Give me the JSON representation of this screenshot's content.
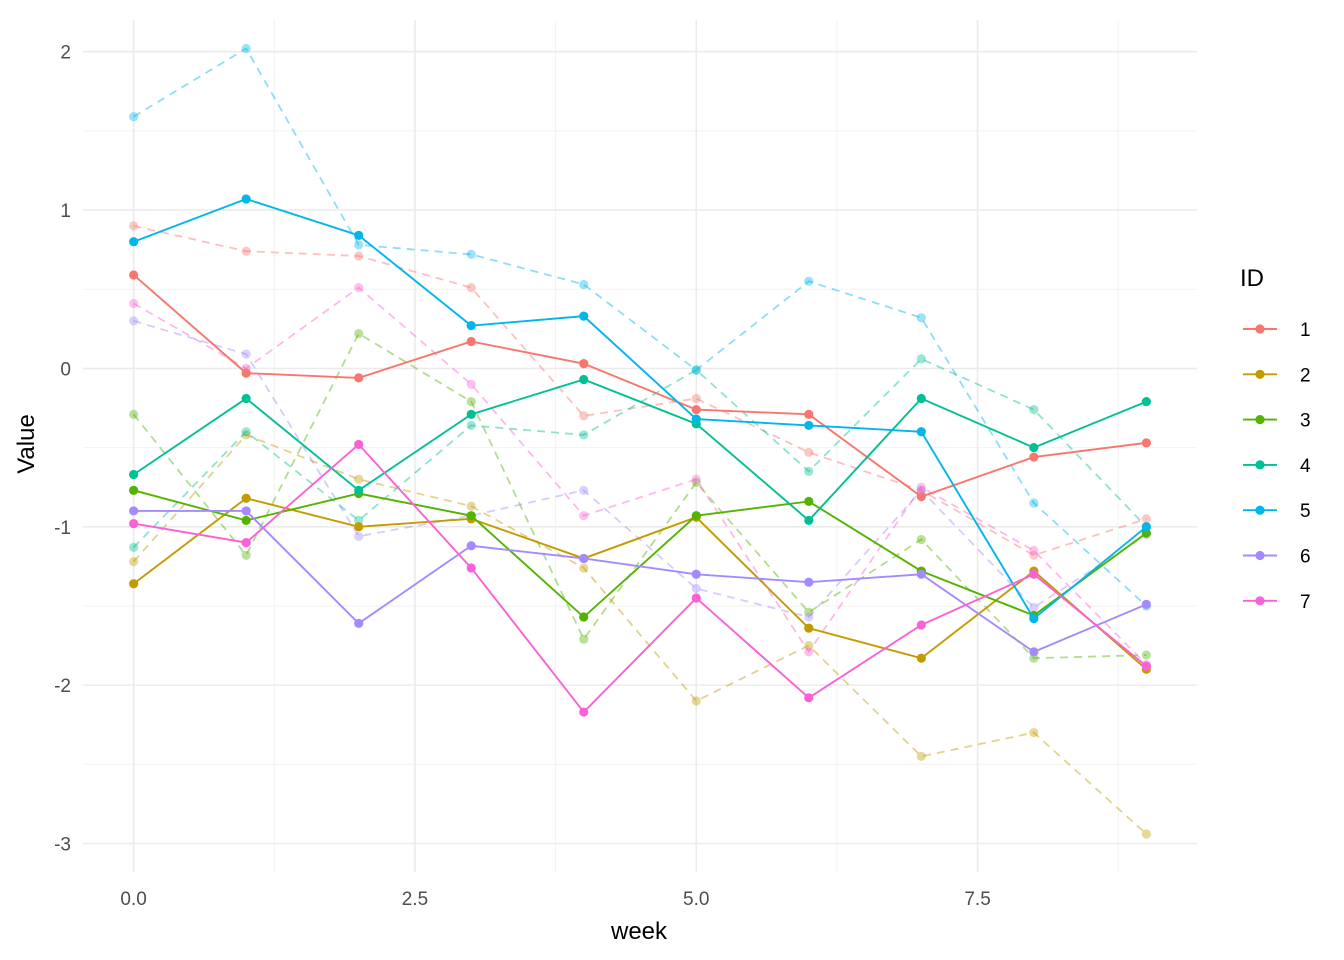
{
  "chart_data": {
    "type": "line",
    "xlabel": "week",
    "ylabel": "Value",
    "xlim": [
      -0.45,
      9.45
    ],
    "ylim": [
      -3.18,
      2.2
    ],
    "x_ticks": [
      0,
      2.5,
      5,
      7.5
    ],
    "x_tick_labels": [
      "0.0",
      "2.5",
      "5.0",
      "7.5"
    ],
    "y_ticks": [
      -3,
      -2,
      -1,
      0,
      1,
      2
    ],
    "y_tick_labels": [
      "-3",
      "-2",
      "-1",
      "0",
      "1",
      "2"
    ],
    "grid": true,
    "legend": {
      "title": "ID",
      "position": "right"
    },
    "x": [
      0,
      1,
      2,
      3,
      4,
      5,
      6,
      7,
      8,
      9
    ],
    "series": [
      {
        "name": "1",
        "color": "#F8766D",
        "solid": [
          0.59,
          -0.03,
          -0.06,
          0.17,
          0.03,
          -0.26,
          -0.29,
          -0.81,
          -0.56,
          -0.47
        ],
        "dashed": [
          0.9,
          0.74,
          0.71,
          0.51,
          -0.3,
          -0.19,
          -0.53,
          -0.77,
          -1.18,
          -0.95
        ]
      },
      {
        "name": "2",
        "color": "#C49A00",
        "solid": [
          -1.36,
          -0.82,
          -1.0,
          -0.95,
          -1.2,
          -0.94,
          -1.64,
          -1.83,
          -1.28,
          -1.9
        ],
        "dashed": [
          -1.22,
          -0.42,
          -0.7,
          -0.87,
          -1.26,
          -2.1,
          -1.75,
          -2.45,
          -2.3,
          -2.94
        ]
      },
      {
        "name": "3",
        "color": "#53B400",
        "solid": [
          -0.77,
          -0.96,
          -0.79,
          -0.93,
          -1.57,
          -0.93,
          -0.84,
          -1.28,
          -1.56,
          -1.04
        ],
        "dashed": [
          -0.29,
          -1.18,
          0.22,
          -0.21,
          -1.71,
          -0.72,
          -1.54,
          -1.08,
          -1.83,
          -1.81
        ]
      },
      {
        "name": "4",
        "color": "#00C094",
        "solid": [
          -0.67,
          -0.19,
          -0.77,
          -0.29,
          -0.07,
          -0.35,
          -0.96,
          -0.19,
          -0.5,
          -0.21
        ],
        "dashed": [
          -1.13,
          -0.4,
          -0.96,
          -0.36,
          -0.42,
          -0.01,
          -0.65,
          0.06,
          -0.26,
          -1.0
        ]
      },
      {
        "name": "5",
        "color": "#00B6EB",
        "solid": [
          0.8,
          1.07,
          0.84,
          0.27,
          0.33,
          -0.32,
          -0.36,
          -0.4,
          -1.58,
          -1.0
        ],
        "dashed": [
          1.59,
          2.02,
          0.78,
          0.72,
          0.53,
          -0.01,
          0.55,
          0.32,
          -0.85,
          -1.5
        ]
      },
      {
        "name": "6",
        "color": "#A58AFF",
        "solid": [
          -0.9,
          -0.9,
          -1.61,
          -1.12,
          -1.2,
          -1.3,
          -1.35,
          -1.3,
          -1.79,
          -1.49
        ],
        "dashed": [
          0.3,
          0.09,
          -1.06,
          -0.93,
          -0.77,
          -1.39,
          -1.57,
          -0.77,
          -1.51,
          -1.05
        ]
      },
      {
        "name": "7",
        "color": "#FB61D7",
        "solid": [
          -0.98,
          -1.1,
          -0.48,
          -1.26,
          -2.17,
          -1.45,
          -2.08,
          -1.62,
          -1.3,
          -1.88
        ],
        "dashed": [
          0.41,
          0.0,
          0.51,
          -0.1,
          -0.93,
          -0.7,
          -1.79,
          -0.75,
          -1.15,
          -1.87
        ]
      }
    ]
  }
}
